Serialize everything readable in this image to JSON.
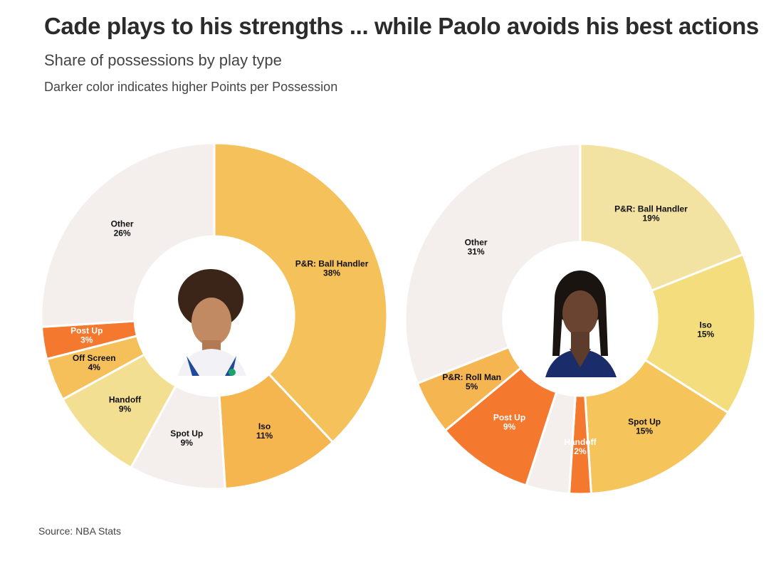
{
  "header": {
    "title": "Cade plays to his strengths ... while Paolo avoids his best actions",
    "subtitle": "Share of possessions by play type",
    "note": "Darker color indicates higher Points per Possession"
  },
  "footer": {
    "source": "Source: NBA Stats"
  },
  "chart_data": [
    {
      "type": "pie",
      "player": "Cade",
      "slices": [
        {
          "label": "P&R: Ball Handler",
          "value": 38,
          "pct_label": "38%",
          "color": "#f5c15a",
          "shown": true
        },
        {
          "label": "Iso",
          "value": 11,
          "pct_label": "11%",
          "color": "#f5b64f",
          "shown": true
        },
        {
          "label": "Spot Up",
          "value": 9,
          "pct_label": "9%",
          "color": "#f4efed",
          "shown": true
        },
        {
          "label": "Handoff",
          "value": 9,
          "pct_label": "9%",
          "color": "#f3df91",
          "shown": true
        },
        {
          "label": "Off Screen",
          "value": 4,
          "pct_label": "4%",
          "color": "#f5bf5a",
          "shown": true
        },
        {
          "label": "Post Up",
          "value": 3,
          "pct_label": "3%",
          "color": "#f4782e",
          "shown": true,
          "light": true
        },
        {
          "label": "Other",
          "value": 26,
          "pct_label": "26%",
          "color": "#f4efed",
          "shown": true
        }
      ]
    },
    {
      "type": "pie",
      "player": "Paolo",
      "slices": [
        {
          "label": "P&R: Ball Handler",
          "value": 19,
          "pct_label": "19%",
          "color": "#f3e3a3",
          "shown": true
        },
        {
          "label": "Iso",
          "value": 15,
          "pct_label": "15%",
          "color": "#f3dd7c",
          "shown": true
        },
        {
          "label": "Spot Up",
          "value": 15,
          "pct_label": "15%",
          "color": "#f5c45a",
          "shown": true
        },
        {
          "label": "Handoff",
          "value": 2,
          "pct_label": "2%",
          "color": "#f4782e",
          "shown": true,
          "light": true
        },
        {
          "label": "",
          "value": 4,
          "pct_label": "",
          "color": "#f4efed",
          "shown": false
        },
        {
          "label": "Post Up",
          "value": 9,
          "pct_label": "9%",
          "color": "#f4782e",
          "shown": true,
          "light": true
        },
        {
          "label": "P&R: Roll Man",
          "value": 5,
          "pct_label": "5%",
          "color": "#f5b550",
          "shown": true
        },
        {
          "label": "Other",
          "value": 31,
          "pct_label": "31%",
          "color": "#f4efed",
          "shown": true
        }
      ]
    }
  ]
}
